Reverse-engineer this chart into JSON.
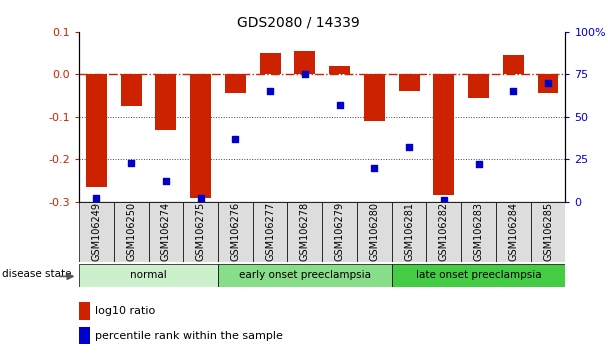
{
  "title": "GDS2080 / 14339",
  "samples": [
    "GSM106249",
    "GSM106250",
    "GSM106274",
    "GSM106275",
    "GSM106276",
    "GSM106277",
    "GSM106278",
    "GSM106279",
    "GSM106280",
    "GSM106281",
    "GSM106282",
    "GSM106283",
    "GSM106284",
    "GSM106285"
  ],
  "log10_ratio": [
    -0.265,
    -0.075,
    -0.13,
    -0.29,
    -0.045,
    0.05,
    0.055,
    0.02,
    -0.11,
    -0.04,
    -0.285,
    -0.055,
    0.045,
    -0.045
  ],
  "percentile_rank": [
    2,
    23,
    12,
    2,
    37,
    65,
    75,
    57,
    20,
    32,
    1,
    22,
    65,
    70
  ],
  "groups": [
    {
      "label": "normal",
      "start": 0,
      "end": 4,
      "color": "#ccf0cc"
    },
    {
      "label": "early onset preeclampsia",
      "start": 4,
      "end": 9,
      "color": "#88dd88"
    },
    {
      "label": "late onset preeclampsia",
      "start": 9,
      "end": 14,
      "color": "#44cc44"
    }
  ],
  "ylim_left": [
    -0.3,
    0.1
  ],
  "ylim_right": [
    0,
    100
  ],
  "bar_color": "#cc2200",
  "dot_color": "#0000cc",
  "hline_color": "#cc2200",
  "grid_color": "#444444",
  "bg_color": "#ffffff",
  "title_fontsize": 10,
  "tick_label_fontsize": 7,
  "left_yticks": [
    0.1,
    0.0,
    -0.1,
    -0.2,
    -0.3
  ],
  "right_yticks": [
    100,
    75,
    50,
    25,
    0
  ],
  "right_yticklabels": [
    "100%",
    "75",
    "50",
    "25",
    "0"
  ],
  "axis_label_color_left": "#cc2200",
  "axis_label_color_right": "#0000cc",
  "legend_items": [
    "log10 ratio",
    "percentile rank within the sample"
  ],
  "disease_state_label": "disease state"
}
